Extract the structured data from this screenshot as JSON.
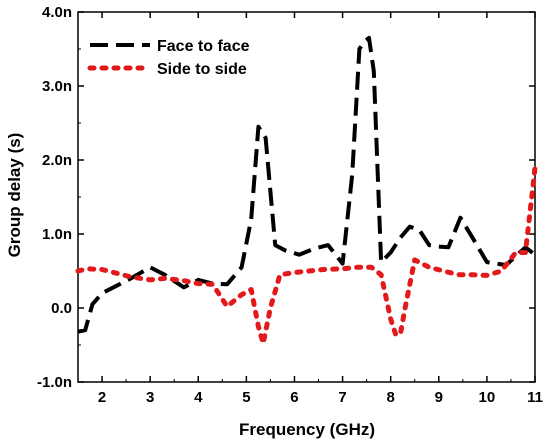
{
  "chart_data": {
    "type": "line",
    "xlabel": "Frequency (GHz)",
    "ylabel": "Group delay (s)",
    "xlim": [
      1.5,
      11
    ],
    "ylim": [
      -1.0,
      4.0
    ],
    "x_ticks": [
      2,
      3,
      4,
      5,
      6,
      7,
      8,
      9,
      10,
      11
    ],
    "y_ticks": [
      {
        "value": -1.0,
        "label": "-1.0n"
      },
      {
        "value": 0.0,
        "label": "0.0"
      },
      {
        "value": 1.0,
        "label": "1.0n"
      },
      {
        "value": 2.0,
        "label": "2.0n"
      },
      {
        "value": 3.0,
        "label": "3.0n"
      },
      {
        "value": 4.0,
        "label": "4.0n"
      }
    ],
    "y_unit": "ns",
    "legend_position": "top-left",
    "grid": false,
    "series": [
      {
        "name": "Face to face",
        "style": "dashed",
        "color": "#000000",
        "x": [
          1.5,
          1.65,
          1.8,
          2.0,
          2.3,
          2.6,
          3.0,
          3.3,
          3.7,
          4.0,
          4.3,
          4.6,
          4.9,
          5.1,
          5.25,
          5.3,
          5.4,
          5.6,
          5.8,
          6.1,
          6.4,
          6.7,
          7.0,
          7.2,
          7.35,
          7.45,
          7.55,
          7.65,
          7.8,
          8.0,
          8.2,
          8.4,
          8.6,
          8.8,
          9.0,
          9.2,
          9.45,
          9.7,
          10.0,
          10.4,
          10.8,
          11.0
        ],
        "y": [
          -0.32,
          -0.3,
          0.05,
          0.2,
          0.3,
          0.4,
          0.55,
          0.45,
          0.28,
          0.38,
          0.33,
          0.32,
          0.55,
          1.2,
          2.45,
          2.4,
          2.3,
          0.85,
          0.78,
          0.72,
          0.8,
          0.85,
          0.6,
          1.8,
          3.5,
          3.6,
          3.65,
          3.2,
          0.62,
          0.75,
          0.95,
          1.1,
          1.05,
          0.85,
          0.83,
          0.82,
          1.22,
          0.95,
          0.62,
          0.58,
          0.82,
          0.72
        ]
      },
      {
        "name": "Side to side",
        "style": "dotted",
        "color": "#e31a1c",
        "x": [
          1.5,
          1.7,
          2.0,
          2.3,
          2.6,
          3.0,
          3.3,
          3.7,
          4.0,
          4.3,
          4.6,
          4.9,
          5.1,
          5.25,
          5.35,
          5.5,
          5.7,
          6.0,
          6.3,
          6.6,
          7.0,
          7.3,
          7.6,
          7.8,
          8.0,
          8.1,
          8.2,
          8.3,
          8.5,
          8.8,
          9.1,
          9.4,
          9.7,
          10.0,
          10.3,
          10.6,
          10.8,
          10.95,
          11.0
        ],
        "y": [
          0.5,
          0.53,
          0.52,
          0.47,
          0.42,
          0.38,
          0.4,
          0.37,
          0.33,
          0.32,
          0.02,
          0.18,
          0.25,
          -0.25,
          -0.48,
          0.0,
          0.45,
          0.48,
          0.5,
          0.52,
          0.53,
          0.55,
          0.55,
          0.45,
          -0.15,
          -0.35,
          -0.36,
          0.0,
          0.65,
          0.55,
          0.5,
          0.45,
          0.45,
          0.44,
          0.5,
          0.75,
          0.75,
          1.6,
          1.9
        ]
      }
    ]
  }
}
